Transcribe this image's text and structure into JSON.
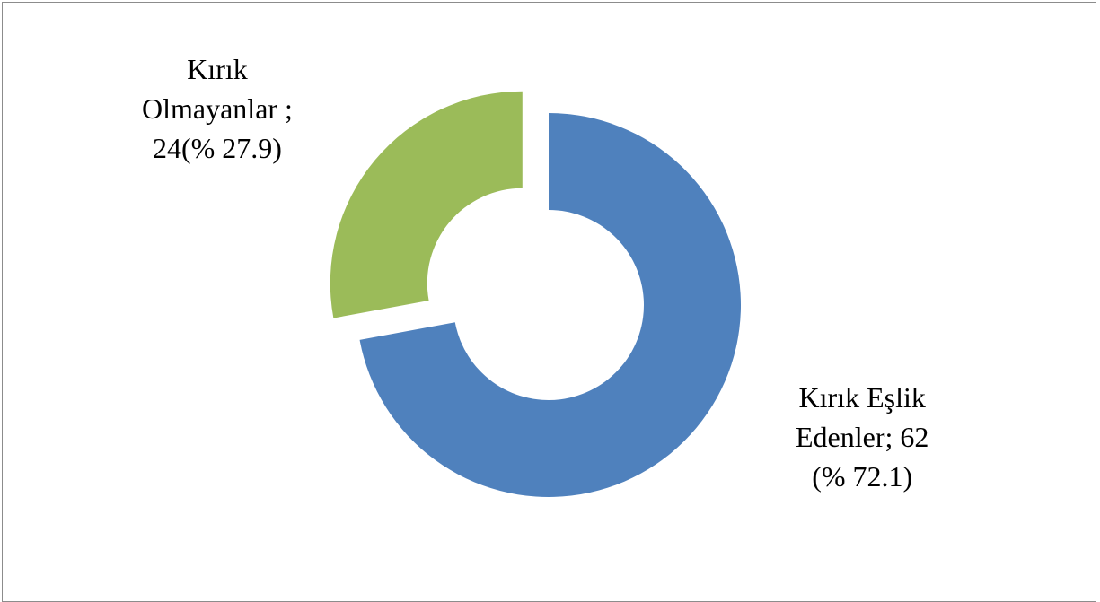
{
  "chart_data": {
    "type": "pie",
    "style": "doughnut",
    "title": "",
    "legend": "none",
    "series": [
      {
        "values": [
          62,
          24
        ],
        "percents": [
          72.1,
          27.9
        ],
        "categories": [
          "Kırık Eşlik Edenler",
          "Kırık Olmayanlar"
        ],
        "colors": [
          "#4f81bd",
          "#9bbb59"
        ],
        "exploded": [
          false,
          true
        ]
      }
    ],
    "data_labels": [
      {
        "lines": [
          "Kırık Eşlik",
          "Edenler; 62",
          "(% 72.1)"
        ]
      },
      {
        "lines": [
          "Kırık",
          "Olmayanlar ;",
          "24(% 27.9)"
        ]
      }
    ]
  }
}
